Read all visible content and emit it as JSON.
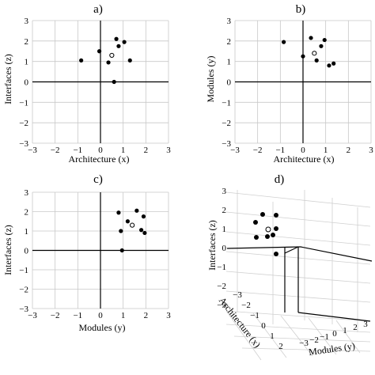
{
  "chart_data": [
    {
      "panel": "a)",
      "type": "scatter",
      "xlabel": "Architecture (x)",
      "ylabel": "Interfaces (z)",
      "xlim": [
        -3,
        3
      ],
      "ylim": [
        -3,
        3
      ],
      "xticks": [
        "−3",
        "−2",
        "−1",
        "0",
        "1",
        "2",
        "3"
      ],
      "yticks": [
        "3",
        "2",
        "1",
        "0",
        "−1",
        "−2",
        "−3"
      ],
      "grid": true,
      "series": [
        {
          "marker": "filled",
          "x": [
            -0.85,
            -0.05,
            0.35,
            0.7,
            0.8,
            1.05,
            1.3,
            0.6
          ],
          "y": [
            1.05,
            1.5,
            0.95,
            2.1,
            1.75,
            1.95,
            1.05,
            0.0
          ]
        },
        {
          "marker": "open",
          "x": [
            0.5
          ],
          "y": [
            1.3
          ]
        }
      ]
    },
    {
      "panel": "b)",
      "type": "scatter",
      "xlabel": "Architecture (x)",
      "ylabel": "Modules (y)",
      "xlim": [
        -3,
        3
      ],
      "ylim": [
        -3,
        3
      ],
      "xticks": [
        "−3",
        "−2",
        "−1",
        "0",
        "1",
        "2",
        "3"
      ],
      "yticks": [
        "3",
        "2",
        "1",
        "0",
        "−1",
        "−2",
        "−3"
      ],
      "grid": true,
      "series": [
        {
          "marker": "filled",
          "x": [
            -0.85,
            0.0,
            0.35,
            0.6,
            0.8,
            0.95,
            1.15,
            1.35
          ],
          "y": [
            1.95,
            1.25,
            2.15,
            1.05,
            1.75,
            2.05,
            0.8,
            0.9
          ]
        },
        {
          "marker": "open",
          "x": [
            0.5
          ],
          "y": [
            1.4
          ]
        }
      ]
    },
    {
      "panel": "c)",
      "type": "scatter",
      "xlabel": "Modules (y)",
      "ylabel": "Interfaces (z)",
      "xlim": [
        -3,
        3
      ],
      "ylim": [
        -3,
        3
      ],
      "xticks": [
        "−3",
        "−2",
        "−1",
        "0",
        "1",
        "2",
        "3"
      ],
      "yticks": [
        "3",
        "2",
        "1",
        "0",
        "−1",
        "−2",
        "−3"
      ],
      "grid": true,
      "series": [
        {
          "marker": "filled",
          "x": [
            0.8,
            0.9,
            1.2,
            1.6,
            1.9,
            1.8,
            1.95,
            0.95
          ],
          "y": [
            1.95,
            1.0,
            1.5,
            2.05,
            1.75,
            1.05,
            0.9,
            0.0
          ]
        },
        {
          "marker": "open",
          "x": [
            1.4
          ],
          "y": [
            1.3
          ]
        }
      ]
    },
    {
      "panel": "d)",
      "type": "scatter3d",
      "xlabel": "Architecture (x)",
      "ylabel": "Modules (y)",
      "zlabel": "Interfaces (z)",
      "zticks": [
        "3",
        "2",
        "1",
        "0",
        "−1",
        "−2",
        "−3"
      ],
      "yticks": [
        "2",
        "1",
        "0",
        "−1",
        "−2",
        "−3"
      ],
      "xticks": [
        "−3",
        "−2",
        "−1",
        "0",
        "1",
        "2",
        "3"
      ]
    }
  ]
}
